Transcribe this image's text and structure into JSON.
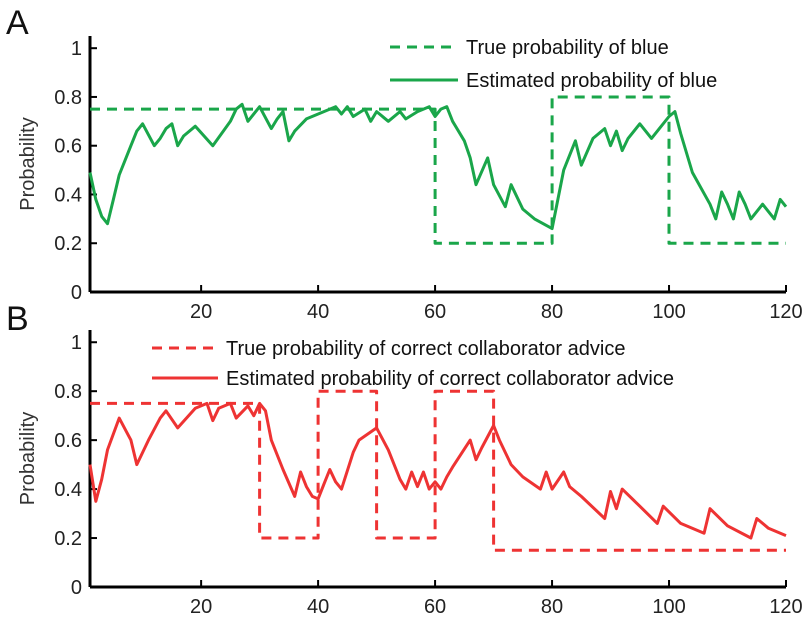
{
  "chart_data": [
    {
      "panel": "A",
      "type": "line",
      "title": "",
      "xlabel": "",
      "ylabel": "Probability",
      "xlim": [
        1,
        120
      ],
      "ylim": [
        0,
        1.05
      ],
      "xticks": [
        20,
        40,
        60,
        80,
        100,
        120
      ],
      "xtick_labels": [
        "20",
        "40",
        "60",
        "80",
        "100",
        "120"
      ],
      "yticks": [
        0,
        0.2,
        0.4,
        0.6,
        0.8,
        1
      ],
      "ytick_labels": [
        "0",
        "0.2",
        "0.4",
        "0.6",
        "0.8",
        "1"
      ],
      "grid": false,
      "legend_position": "top-right",
      "color": "#1aa64a",
      "series": [
        {
          "name": "True probability of blue",
          "style": "dashed",
          "x": [
            1,
            60,
            60,
            80,
            80,
            100,
            100,
            120
          ],
          "y": [
            0.75,
            0.75,
            0.2,
            0.2,
            0.8,
            0.8,
            0.2,
            0.2
          ]
        },
        {
          "name": "Estimated probability of blue",
          "style": "solid",
          "x": [
            1,
            2,
            3,
            4,
            5,
            6,
            8,
            9,
            10,
            12,
            13,
            14,
            15,
            16,
            17,
            19,
            22,
            25,
            26,
            27,
            28,
            30,
            32,
            33,
            34,
            35,
            36,
            38,
            41,
            43,
            44,
            45,
            46,
            48,
            49,
            50,
            52,
            54,
            55,
            57,
            59,
            60,
            61,
            62,
            63,
            65,
            66,
            67,
            69,
            70,
            72,
            73,
            75,
            77,
            80,
            82,
            84,
            85,
            87,
            89,
            90,
            91,
            92,
            93,
            95,
            97,
            100,
            101,
            102,
            104,
            107,
            108,
            109,
            110,
            111,
            112,
            113,
            114,
            116,
            118,
            119,
            120
          ],
          "y": [
            0.49,
            0.38,
            0.31,
            0.28,
            0.38,
            0.48,
            0.6,
            0.66,
            0.69,
            0.6,
            0.63,
            0.67,
            0.69,
            0.6,
            0.64,
            0.68,
            0.6,
            0.7,
            0.75,
            0.77,
            0.7,
            0.76,
            0.67,
            0.71,
            0.74,
            0.62,
            0.66,
            0.71,
            0.74,
            0.76,
            0.73,
            0.76,
            0.72,
            0.75,
            0.7,
            0.74,
            0.7,
            0.74,
            0.71,
            0.74,
            0.76,
            0.72,
            0.75,
            0.76,
            0.7,
            0.62,
            0.55,
            0.44,
            0.55,
            0.44,
            0.35,
            0.44,
            0.34,
            0.3,
            0.26,
            0.5,
            0.62,
            0.52,
            0.63,
            0.67,
            0.6,
            0.66,
            0.58,
            0.63,
            0.69,
            0.63,
            0.72,
            0.74,
            0.65,
            0.49,
            0.36,
            0.3,
            0.41,
            0.36,
            0.3,
            0.41,
            0.36,
            0.3,
            0.36,
            0.3,
            0.38,
            0.35
          ]
        }
      ]
    },
    {
      "panel": "B",
      "type": "line",
      "title": "",
      "xlabel": "",
      "ylabel": "Probability",
      "xlim": [
        1,
        120
      ],
      "ylim": [
        0,
        1.05
      ],
      "xticks": [
        20,
        40,
        60,
        80,
        100,
        120
      ],
      "xtick_labels": [
        "20",
        "40",
        "60",
        "80",
        "100",
        "120"
      ],
      "yticks": [
        0,
        0.2,
        0.4,
        0.6,
        0.8,
        1
      ],
      "ytick_labels": [
        "0",
        "0.2",
        "0.4",
        "0.6",
        "0.8",
        "1"
      ],
      "grid": false,
      "legend_position": "top-right",
      "color": "#ee3333",
      "series": [
        {
          "name": "True probability of correct collaborator advice",
          "style": "dashed",
          "x": [
            1,
            30,
            30,
            40,
            40,
            50,
            50,
            60,
            60,
            70,
            70,
            120
          ],
          "y": [
            0.75,
            0.75,
            0.2,
            0.2,
            0.8,
            0.8,
            0.2,
            0.2,
            0.8,
            0.8,
            0.15,
            0.15
          ]
        },
        {
          "name": "Estimated probability of correct collaborator advice",
          "style": "solid",
          "x": [
            1,
            2,
            3,
            4,
            6,
            8,
            9,
            11,
            13,
            14,
            16,
            19,
            21,
            22,
            23,
            25,
            26,
            28,
            29,
            30,
            31,
            32,
            34,
            36,
            37,
            38,
            39,
            40,
            41,
            42,
            43,
            44,
            46,
            47,
            50,
            52,
            54,
            55,
            56,
            57,
            58,
            59,
            60,
            61,
            62,
            63,
            66,
            67,
            68,
            70,
            71,
            73,
            75,
            78,
            79,
            80,
            82,
            83,
            85,
            89,
            90,
            91,
            92,
            95,
            98,
            99,
            102,
            106,
            107,
            110,
            114,
            115,
            117,
            120
          ],
          "y": [
            0.5,
            0.35,
            0.44,
            0.56,
            0.69,
            0.6,
            0.5,
            0.6,
            0.69,
            0.72,
            0.65,
            0.73,
            0.75,
            0.68,
            0.73,
            0.75,
            0.69,
            0.74,
            0.7,
            0.75,
            0.72,
            0.6,
            0.48,
            0.37,
            0.47,
            0.41,
            0.37,
            0.36,
            0.42,
            0.48,
            0.43,
            0.4,
            0.55,
            0.6,
            0.65,
            0.56,
            0.44,
            0.4,
            0.47,
            0.41,
            0.47,
            0.4,
            0.43,
            0.4,
            0.45,
            0.49,
            0.6,
            0.52,
            0.57,
            0.66,
            0.6,
            0.5,
            0.45,
            0.4,
            0.47,
            0.4,
            0.47,
            0.41,
            0.37,
            0.28,
            0.39,
            0.32,
            0.4,
            0.33,
            0.26,
            0.33,
            0.26,
            0.22,
            0.32,
            0.25,
            0.2,
            0.28,
            0.24,
            0.21
          ]
        }
      ]
    }
  ]
}
